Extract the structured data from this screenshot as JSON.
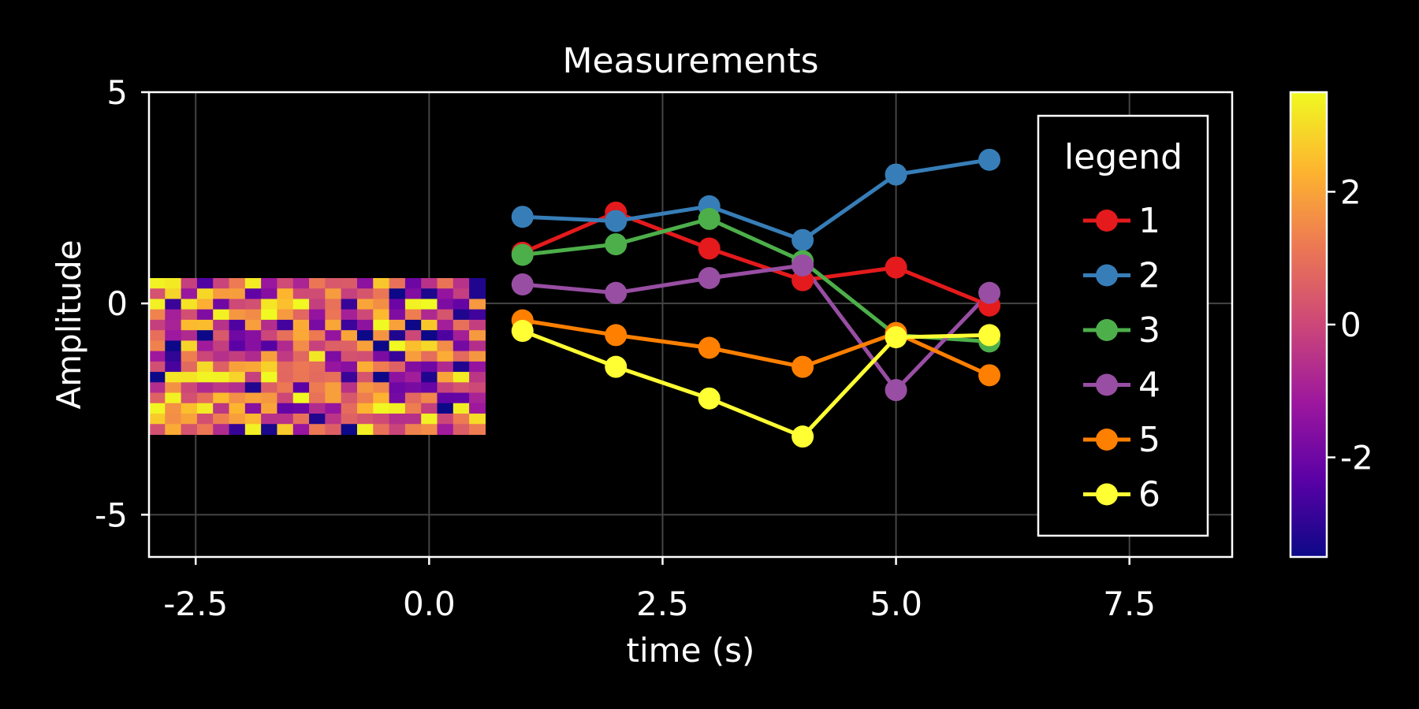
{
  "chart_data": {
    "type": "line",
    "title": "Measurements",
    "xlabel": "time (s)",
    "ylabel": "Amplitude",
    "xlim": [
      -3.0,
      8.6
    ],
    "ylim": [
      -6.0,
      5.0
    ],
    "xticks": [
      -2.5,
      0.0,
      2.5,
      5.0,
      7.5
    ],
    "xtick_labels": [
      "-2.5",
      "0.0",
      "2.5",
      "5.0",
      "7.5"
    ],
    "yticks": [
      -5,
      0,
      5
    ],
    "ytick_labels": [
      "-5",
      "0",
      "5"
    ],
    "grid": true,
    "legend": {
      "title": "legend",
      "placement": "right"
    },
    "x": [
      1,
      2,
      3,
      4,
      5,
      6
    ],
    "series": [
      {
        "name": "1",
        "color": "#e41a1c",
        "values": [
          1.2,
          2.15,
          1.3,
          0.55,
          0.85,
          -0.05
        ]
      },
      {
        "name": "2",
        "color": "#377eb8",
        "values": [
          2.05,
          1.95,
          2.3,
          1.5,
          3.05,
          3.4
        ]
      },
      {
        "name": "3",
        "color": "#4daf4a",
        "values": [
          1.15,
          1.4,
          2.0,
          1.0,
          -0.75,
          -0.9
        ]
      },
      {
        "name": "4",
        "color": "#984ea3",
        "values": [
          0.45,
          0.25,
          0.6,
          0.9,
          -2.05,
          0.25
        ]
      },
      {
        "name": "5",
        "color": "#ff7f00",
        "values": [
          -0.4,
          -0.75,
          -1.05,
          -1.5,
          -0.7,
          -1.7
        ]
      },
      {
        "name": "6",
        "color": "#ffff33",
        "values": [
          -0.65,
          -1.5,
          -2.25,
          -3.15,
          -0.8,
          -0.75
        ]
      }
    ],
    "heatmap": {
      "extent_x": [
        -3.0,
        0.6
      ],
      "extent_y": [
        -3.1,
        0.6
      ],
      "rows": 15,
      "cols": 21,
      "seed": 7,
      "colormap": [
        "#0d0887",
        "#5c01a6",
        "#9c179e",
        "#cc4778",
        "#ed7953",
        "#fdb42f",
        "#f0f921"
      ]
    },
    "colorbar": {
      "range": [
        -3.5,
        3.5
      ],
      "ticks": [
        -2,
        0,
        2
      ],
      "tick_labels": [
        "-2",
        "0",
        "2"
      ]
    }
  }
}
